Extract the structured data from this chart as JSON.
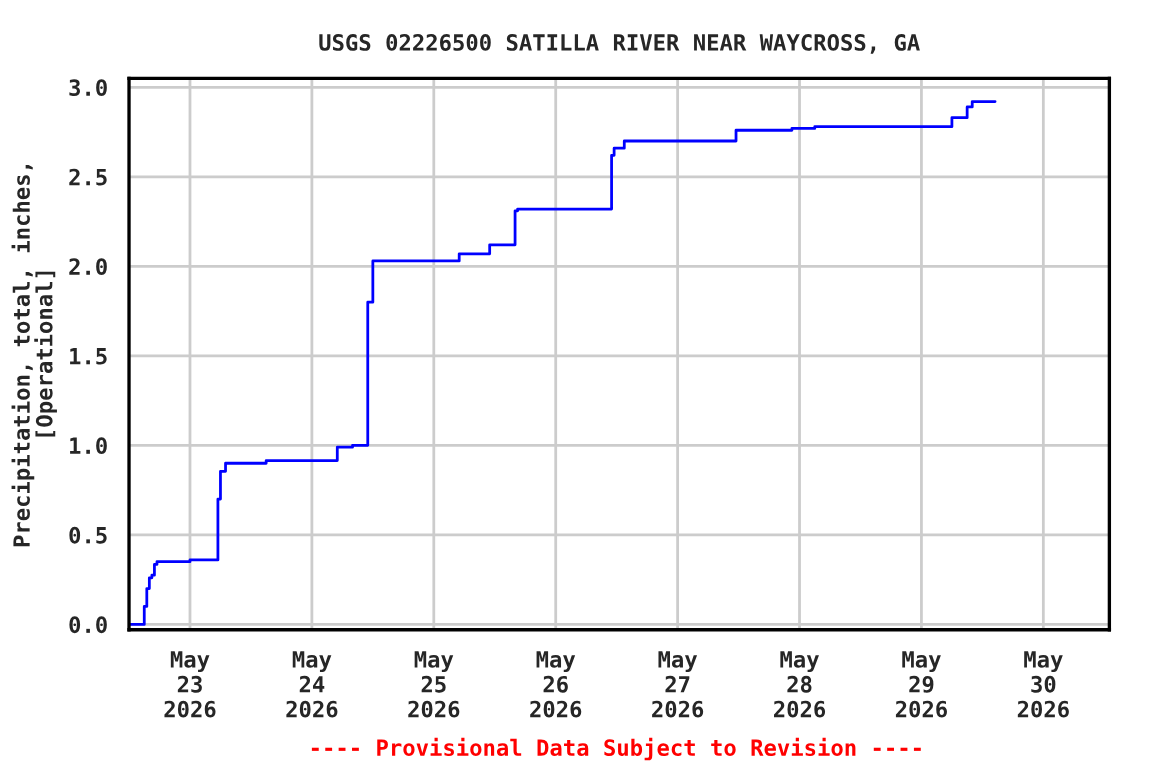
{
  "chart_data": {
    "type": "step",
    "title": "USGS 02226500 SATILLA RIVER NEAR WAYCROSS, GA",
    "ylabel": "Precipitation, total, inches,\n[Operational]",
    "x": [
      "2026-05-22T12:00",
      "2026-05-22T15:00",
      "2026-05-22T15:30",
      "2026-05-22T16:00",
      "2026-05-22T16:30",
      "2026-05-22T17:00",
      "2026-05-22T17:30",
      "2026-05-23T00:00",
      "2026-05-23T05:30",
      "2026-05-23T06:00",
      "2026-05-23T07:00",
      "2026-05-23T15:00",
      "2026-05-24T05:00",
      "2026-05-24T08:00",
      "2026-05-24T11:00",
      "2026-05-24T12:00",
      "2026-05-25T05:00",
      "2026-05-25T11:00",
      "2026-05-25T16:00",
      "2026-05-25T16:30",
      "2026-05-26T11:00",
      "2026-05-26T11:30",
      "2026-05-26T13:30",
      "2026-05-27T11:30",
      "2026-05-27T22:30",
      "2026-05-28T03:00",
      "2026-05-29T06:00",
      "2026-05-29T09:00",
      "2026-05-29T10:00",
      "2026-05-29T14:30"
    ],
    "series": [
      {
        "color": "#0000ff",
        "values": [
          0.0,
          0.1,
          0.2,
          0.26,
          0.275,
          0.335,
          0.35,
          0.36,
          0.7,
          0.855,
          0.9,
          0.915,
          0.99,
          1.0,
          1.8,
          2.03,
          2.07,
          2.12,
          2.31,
          2.32,
          2.62,
          2.66,
          2.7,
          2.76,
          2.77,
          2.78,
          2.83,
          2.89,
          2.92,
          2.92
        ]
      }
    ],
    "xlim": [
      "2026-05-22T12:00",
      "2026-05-30T13:00"
    ],
    "xticks": [
      {
        "value": "2026-05-23",
        "label": "May\n23\n2026"
      },
      {
        "value": "2026-05-24",
        "label": "May\n24\n2026"
      },
      {
        "value": "2026-05-25",
        "label": "May\n25\n2026"
      },
      {
        "value": "2026-05-26",
        "label": "May\n26\n2026"
      },
      {
        "value": "2026-05-27",
        "label": "May\n27\n2026"
      },
      {
        "value": "2026-05-28",
        "label": "May\n28\n2026"
      },
      {
        "value": "2026-05-29",
        "label": "May\n29\n2026"
      },
      {
        "value": "2026-05-30",
        "label": "May\n30\n2026"
      }
    ],
    "ylim": [
      -0.03,
      3.05
    ],
    "yticks": [
      {
        "value": 0,
        "label": "0.0"
      },
      {
        "value": 0.5,
        "label": "0.5"
      },
      {
        "value": 1,
        "label": "1.0"
      },
      {
        "value": 1.5,
        "label": "1.5"
      },
      {
        "value": 2,
        "label": "2.0"
      },
      {
        "value": 2.5,
        "label": "2.5"
      },
      {
        "value": 3,
        "label": "3.0"
      }
    ],
    "grid": true,
    "annotations": [
      "---- Provisional Data Subject to Revision ----"
    ]
  }
}
